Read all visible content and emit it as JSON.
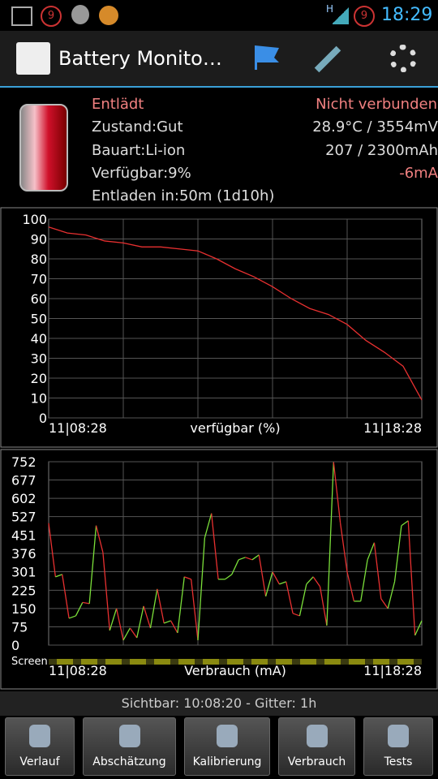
{
  "status_bar": {
    "notification_badge": "9",
    "network": "H",
    "signal_badge": "9",
    "time": "18:29"
  },
  "app_bar": {
    "title": "Battery Monito…"
  },
  "info": {
    "state": "Entlädt",
    "connection": "Nicht verbunden",
    "health": "Zustand:Gut",
    "temp_voltage": "28.9°C / 3554mV",
    "type": "Bauart:Li-ion",
    "capacity": "207 / 2300mAh",
    "available": "Verfügbar:9%",
    "current": "-6mA",
    "remaining": "Entladen in:50m (1d10h)"
  },
  "chart_data": [
    {
      "type": "line",
      "x_label": "verfügbar (%)",
      "color": "#e83030",
      "categories": [
        "11|08:28",
        null,
        null,
        null,
        null,
        null,
        null,
        null,
        null,
        null,
        null,
        null,
        null,
        null,
        null,
        null,
        null,
        null,
        null,
        null,
        "11|18:28"
      ],
      "values": [
        96,
        93,
        92,
        89,
        88,
        86,
        86,
        85,
        84,
        80,
        75,
        71,
        66,
        60,
        55,
        52,
        47,
        39,
        33,
        26,
        9
      ],
      "ylim": [
        0,
        100
      ],
      "yticks": [
        0,
        10,
        20,
        30,
        40,
        50,
        60,
        70,
        80,
        90,
        100
      ],
      "grid": true
    },
    {
      "type": "line",
      "x_label": "Verbrauch (mA)",
      "strip_label": "Screen",
      "rise_color": "#7be03a",
      "fall_color": "#e83030",
      "categories": [
        "11|08:28",
        null,
        null,
        null,
        null,
        null,
        null,
        null,
        null,
        null,
        null,
        null,
        null,
        null,
        null,
        null,
        null,
        null,
        null,
        null,
        null,
        null,
        null,
        null,
        null,
        null,
        null,
        null,
        null,
        null,
        null,
        null,
        null,
        null,
        null,
        null,
        null,
        null,
        null,
        null,
        null,
        null,
        null,
        null,
        null,
        null,
        null,
        null,
        null,
        null,
        null,
        null,
        null,
        null,
        null,
        "11|18:28"
      ],
      "values": [
        500,
        280,
        290,
        110,
        120,
        175,
        170,
        490,
        380,
        60,
        150,
        20,
        70,
        30,
        160,
        70,
        230,
        90,
        100,
        50,
        280,
        270,
        20,
        440,
        540,
        270,
        270,
        290,
        350,
        360,
        350,
        370,
        200,
        300,
        250,
        260,
        130,
        120,
        250,
        280,
        240,
        80,
        750,
        500,
        300,
        180,
        180,
        350,
        420,
        190,
        150,
        260,
        490,
        510,
        40,
        100
      ],
      "ylim": [
        0,
        752
      ],
      "yticks": [
        0,
        75,
        150,
        225,
        301,
        376,
        451,
        527,
        602,
        677,
        752
      ],
      "grid": true
    }
  ],
  "footer": {
    "visible": "Sichtbar: 10:08:20 - Gitter: 1h"
  },
  "tabs": [
    "Verlauf",
    "Abschätzung",
    "Kalibrierung",
    "Verbrauch",
    "Tests"
  ]
}
